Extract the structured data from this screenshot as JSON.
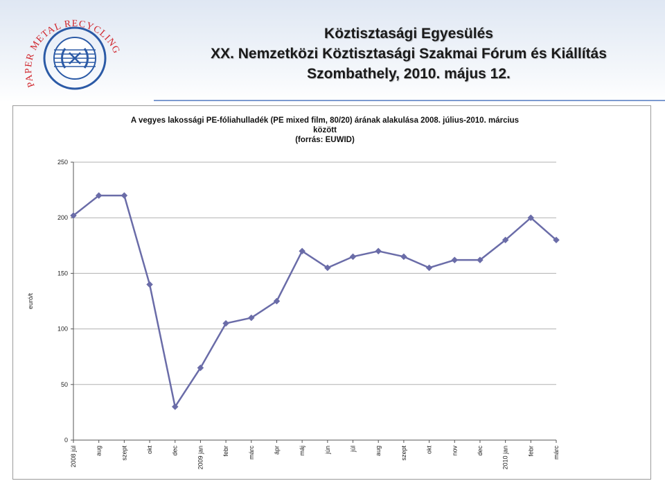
{
  "header": {
    "line1": "Köztisztasági Egyesülés",
    "line2": "XX. Nemzetközi Köztisztasági Szakmai Fórum és Kiállítás",
    "line3": "Szombathely, 2010. május 12."
  },
  "logo": {
    "text": "PAPER METAL RECYCLING",
    "ring_color": "#2b5aa6",
    "text_color": "#d0242b"
  },
  "colors": {
    "line": "#6a6ca8",
    "marker": "#6a6ca8",
    "grid": "#b0b0b0",
    "header_rule": "#7c9ad0"
  },
  "chart_data": {
    "type": "line",
    "title_lines": [
      "A vegyes lakossági PE-fóliahulladék (PE mixed film, 80/20) árának alakulása 2008. július-2010. március",
      "között",
      "(forrás: EUWID)"
    ],
    "ylabel": "euró/t",
    "xlabel": "",
    "ylim": [
      0,
      250
    ],
    "yticks": [
      0,
      50,
      100,
      150,
      200,
      250
    ],
    "grid": true,
    "legend": "none",
    "categories": [
      "2008 júl",
      "aug",
      "szept",
      "okt",
      "dec",
      "2009 jan",
      "febr",
      "márc",
      "ápr",
      "máj",
      "jún",
      "júl",
      "aug",
      "szept",
      "okt",
      "nov",
      "dec",
      "2010 jan",
      "febr",
      "márc"
    ],
    "series": [
      {
        "values": [
          202,
          220,
          220,
          140,
          30,
          65,
          105,
          110,
          125,
          170,
          155,
          165,
          170,
          165,
          155,
          162,
          162,
          180,
          200,
          180
        ]
      }
    ]
  }
}
